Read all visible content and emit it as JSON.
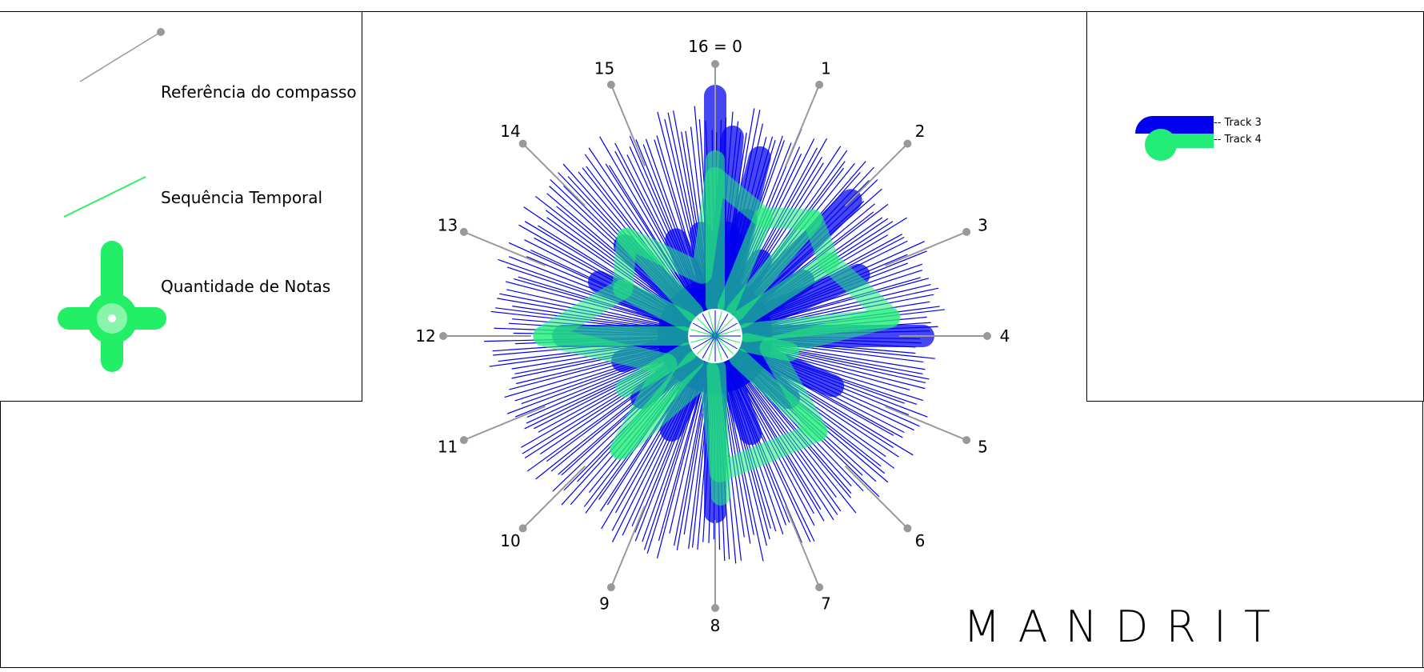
{
  "legend": {
    "items": [
      {
        "id": "reference",
        "label": "Referência do compasso",
        "color": "#999999"
      },
      {
        "id": "sequence",
        "label": "Sequência Temporal",
        "color": "#33ee66"
      },
      {
        "id": "quantity",
        "label": "Quantidade de Notas",
        "color": "#22ee66"
      }
    ]
  },
  "tracks": [
    {
      "label": "-- Track 3",
      "color": "#0000ee"
    },
    {
      "label": "-- Track 4",
      "color": "#22ee77"
    }
  ],
  "brand": "MANDRIT",
  "radial": {
    "labels": [
      "16 = 0",
      "1",
      "2",
      "3",
      "4",
      "5",
      "6",
      "7",
      "8",
      "9",
      "10",
      "11",
      "12",
      "13",
      "14",
      "15"
    ],
    "track3_color": "#0000ee",
    "track4_color": "#22ee77",
    "reference_color": "#999999"
  }
}
